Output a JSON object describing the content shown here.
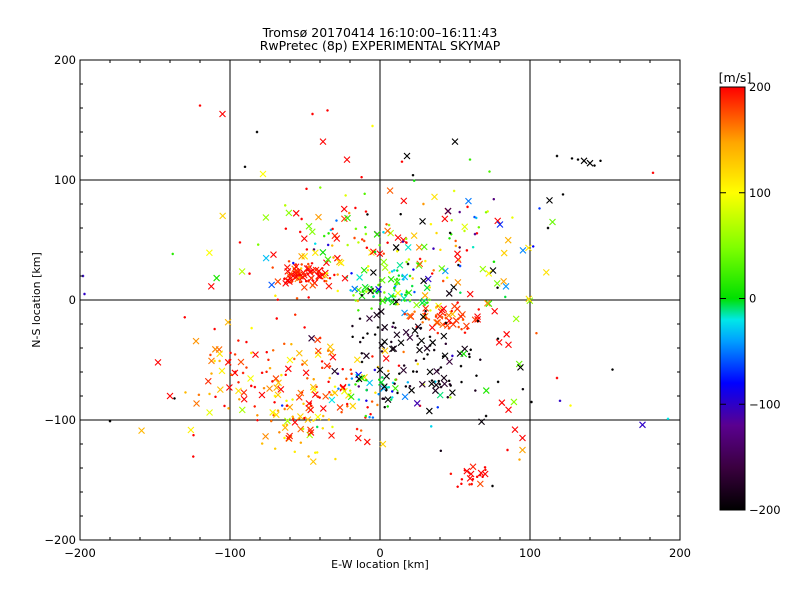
{
  "chart_data": {
    "type": "scatter",
    "title_line1": "Tromsø 20170414 16:10:00–16:11:43",
    "title_line2": "RwPretec (8p) EXPERIMENTAL SKYMAP",
    "xlabel": "E-W location [km]",
    "ylabel": "N-S location [km]",
    "xlim": [
      -200,
      200
    ],
    "ylim": [
      -200,
      200
    ],
    "xticks": [
      -200,
      -100,
      0,
      100,
      200
    ],
    "yticks": [
      -200,
      -100,
      0,
      100,
      200
    ],
    "grid_lines": [
      -100,
      0,
      100
    ],
    "colorbar": {
      "label": "[m/s]",
      "range": [
        -200,
        200
      ],
      "ticks": [
        200,
        100,
        0,
        -100,
        -200
      ],
      "colors": [
        "#000000",
        "#3a003f",
        "#5a008f",
        "#0000ff",
        "#00a0ff",
        "#00e8e8",
        "#00e000",
        "#7fff00",
        "#ffff00",
        "#ffa500",
        "#ff0000"
      ]
    },
    "markers": {
      "plus": "small dot/plus",
      "cross": "x"
    },
    "clusters": [
      {
        "name": "north-central-red",
        "cx": -50,
        "cy": 20,
        "sx": 10,
        "sy": 6,
        "n": 70,
        "v": 190,
        "dv": 20
      },
      {
        "name": "center-green",
        "cx": 5,
        "cy": 8,
        "sx": 14,
        "sy": 8,
        "n": 70,
        "v": 10,
        "dv": 30
      },
      {
        "name": "east-red-band",
        "cx": 45,
        "cy": -15,
        "sx": 16,
        "sy": 5,
        "n": 50,
        "v": 185,
        "dv": 20
      },
      {
        "name": "south-red-cluster",
        "cx": 60,
        "cy": -148,
        "sx": 6,
        "sy": 5,
        "n": 20,
        "v": 200,
        "dv": 10
      },
      {
        "name": "sw-orange",
        "cx": -55,
        "cy": -110,
        "sx": 12,
        "sy": 14,
        "n": 30,
        "v": 120,
        "dv": 25
      },
      {
        "name": "west-red-field",
        "cx": -60,
        "cy": -70,
        "sx": 38,
        "sy": 26,
        "n": 180,
        "v": 175,
        "dv": 40
      },
      {
        "name": "center-cyan",
        "cx": -5,
        "cy": -75,
        "sx": 18,
        "sy": 12,
        "n": 45,
        "v": -20,
        "dv": 40
      },
      {
        "name": "se-black",
        "cx": 40,
        "cy": -55,
        "sx": 22,
        "sy": 22,
        "n": 70,
        "v": -195,
        "dv": 15
      },
      {
        "name": "center-black",
        "cx": 5,
        "cy": -35,
        "sx": 22,
        "sy": 25,
        "n": 45,
        "v": -190,
        "dv": 20
      },
      {
        "name": "north-mixed",
        "cx": -15,
        "cy": 45,
        "sx": 45,
        "sy": 25,
        "n": 150,
        "v": 120,
        "dv": 110
      },
      {
        "name": "ne-mixed",
        "cx": 50,
        "cy": 40,
        "sx": 25,
        "sy": 25,
        "n": 50,
        "v": 0,
        "dv": 170
      },
      {
        "name": "east-mixed",
        "cx": 75,
        "cy": -30,
        "sx": 25,
        "sy": 40,
        "n": 30,
        "v": 60,
        "dv": 140
      }
    ],
    "isolated_points": [
      {
        "x": -120,
        "y": 162,
        "v": 200
      },
      {
        "x": -105,
        "y": 155,
        "v": 200
      },
      {
        "x": -82,
        "y": 140,
        "v": -200
      },
      {
        "x": -45,
        "y": 155,
        "v": 200
      },
      {
        "x": -35,
        "y": 158,
        "v": 200
      },
      {
        "x": -38,
        "y": 132,
        "v": 200
      },
      {
        "x": -22,
        "y": 117,
        "v": 200
      },
      {
        "x": -5,
        "y": 145,
        "v": 100
      },
      {
        "x": 18,
        "y": 120,
        "v": -200
      },
      {
        "x": 22,
        "y": 104,
        "v": -200
      },
      {
        "x": 50,
        "y": 132,
        "v": -200
      },
      {
        "x": 60,
        "y": 117,
        "v": 20
      },
      {
        "x": 73,
        "y": 107,
        "v": 30
      },
      {
        "x": 118,
        "y": 120,
        "v": -200
      },
      {
        "x": 128,
        "y": 118,
        "v": -200
      },
      {
        "x": 132,
        "y": 117,
        "v": -200
      },
      {
        "x": 136,
        "y": 116,
        "v": -200
      },
      {
        "x": 140,
        "y": 114,
        "v": -200
      },
      {
        "x": 143,
        "y": 112,
        "v": -200
      },
      {
        "x": 147,
        "y": 116,
        "v": -200
      },
      {
        "x": 182,
        "y": 106,
        "v": 200
      },
      {
        "x": -90,
        "y": 111,
        "v": -200
      },
      {
        "x": -78,
        "y": 105,
        "v": 100
      },
      {
        "x": 122,
        "y": 88,
        "v": -200
      },
      {
        "x": 113,
        "y": 83,
        "v": -200
      },
      {
        "x": 115,
        "y": 65,
        "v": 40
      },
      {
        "x": 112,
        "y": 60,
        "v": -200
      },
      {
        "x": -198,
        "y": 20,
        "v": -100
      },
      {
        "x": -197,
        "y": 5,
        "v": -100
      },
      {
        "x": -180,
        "y": -101,
        "v": -200
      },
      {
        "x": -148,
        "y": -52,
        "v": 200
      },
      {
        "x": -140,
        "y": -80,
        "v": 200
      },
      {
        "x": -137,
        "y": -82,
        "v": -200
      },
      {
        "x": 101,
        "y": -85,
        "v": -200
      },
      {
        "x": 120,
        "y": -84,
        "v": -100
      },
      {
        "x": 127,
        "y": -88,
        "v": 100
      },
      {
        "x": 155,
        "y": -58,
        "v": -200
      },
      {
        "x": 175,
        "y": -104,
        "v": -100
      },
      {
        "x": 192,
        "y": -99,
        "v": -20
      },
      {
        "x": 118,
        "y": -65,
        "v": 200
      },
      {
        "x": 95,
        "y": -125,
        "v": 150
      },
      {
        "x": 93,
        "y": -133,
        "v": 150
      },
      {
        "x": 85,
        "y": -125,
        "v": 200
      },
      {
        "x": 75,
        "y": -155,
        "v": -200
      },
      {
        "x": 90,
        "y": -108,
        "v": 200
      },
      {
        "x": 95,
        "y": -115,
        "v": 200
      }
    ]
  }
}
